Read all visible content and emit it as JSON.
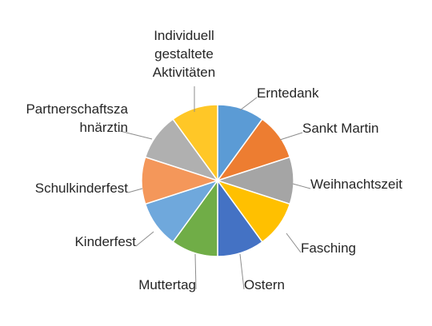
{
  "chart_data": {
    "type": "pie",
    "title": "",
    "categories": [
      "Erntedank",
      "Sankt Martin",
      "Weihnachtszeit",
      "Fasching",
      "Ostern",
      "Muttertag",
      "Kinderfest",
      "Schulkinderfest",
      "Partnerschaftszahnärztin",
      "Individuell gestaltete Aktivitäten"
    ],
    "values": [
      1,
      1,
      1,
      1,
      1,
      1,
      1,
      1,
      1,
      1
    ],
    "colors": [
      "#5B9BD5",
      "#ED7D31",
      "#A5A5A5",
      "#FFC000",
      "#4472C4",
      "#70AD47",
      "#6FA8DC",
      "#F4975A",
      "#B0B0B0",
      "#FFC727"
    ],
    "legend": "none",
    "labels": [
      [
        "Erntedank"
      ],
      [
        "Sankt Martin"
      ],
      [
        "Weihnachtszeit"
      ],
      [
        "Fasching"
      ],
      [
        "Ostern"
      ],
      [
        "Muttertag"
      ],
      [
        "Kinderfest"
      ],
      [
        "Schulkinderfest"
      ],
      [
        "Partnerschaftsza",
        "hnärztin"
      ],
      [
        "Individuell",
        "gestaltete",
        "Aktivitäten"
      ]
    ]
  }
}
